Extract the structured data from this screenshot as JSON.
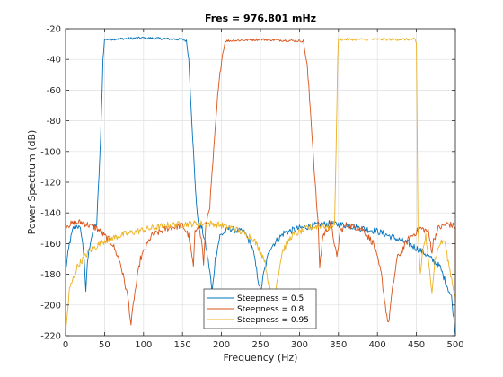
{
  "chart_data": {
    "type": "line",
    "title": "Fres = 976.801 mHz",
    "xlabel": "Frequency (Hz)",
    "ylabel": "Power Spectrum (dB)",
    "xlim": [
      0,
      500
    ],
    "ylim": [
      -220,
      -20
    ],
    "xticks": [
      0,
      50,
      100,
      150,
      200,
      250,
      300,
      350,
      400,
      450,
      500
    ],
    "yticks": [
      -220,
      -200,
      -180,
      -160,
      -140,
      -120,
      -100,
      -80,
      -60,
      -40,
      -20
    ],
    "grid": true,
    "legend_position": "bottom-center",
    "series": [
      {
        "name": "Steepness = 0.5",
        "color": "#0072BD",
        "points": [
          [
            0,
            -178
          ],
          [
            5,
            -160
          ],
          [
            10,
            -150
          ],
          [
            15,
            -148
          ],
          [
            20,
            -152
          ],
          [
            24,
            -170
          ],
          [
            26,
            -193
          ],
          [
            28,
            -172
          ],
          [
            32,
            -158
          ],
          [
            36,
            -150
          ],
          [
            40,
            -147
          ],
          [
            45,
            -92
          ],
          [
            48,
            -40
          ],
          [
            50,
            -27
          ],
          [
            100,
            -26
          ],
          [
            150,
            -27
          ],
          [
            155,
            -28
          ],
          [
            158,
            -40
          ],
          [
            162,
            -80
          ],
          [
            166,
            -120
          ],
          [
            170,
            -147
          ],
          [
            175,
            -150
          ],
          [
            180,
            -162
          ],
          [
            185,
            -178
          ],
          [
            188,
            -192
          ],
          [
            192,
            -170
          ],
          [
            198,
            -155
          ],
          [
            210,
            -150
          ],
          [
            230,
            -153
          ],
          [
            240,
            -163
          ],
          [
            250,
            -192
          ],
          [
            254,
            -180
          ],
          [
            262,
            -163
          ],
          [
            280,
            -153
          ],
          [
            300,
            -150
          ],
          [
            320,
            -148
          ],
          [
            340,
            -147
          ],
          [
            360,
            -148
          ],
          [
            380,
            -150
          ],
          [
            400,
            -152
          ],
          [
            420,
            -156
          ],
          [
            440,
            -160
          ],
          [
            460,
            -166
          ],
          [
            480,
            -175
          ],
          [
            495,
            -195
          ],
          [
            500,
            -219
          ]
        ]
      },
      {
        "name": "Steepness = 0.8",
        "color": "#D95319",
        "points": [
          [
            0,
            -148
          ],
          [
            20,
            -146
          ],
          [
            40,
            -150
          ],
          [
            50,
            -155
          ],
          [
            60,
            -160
          ],
          [
            70,
            -172
          ],
          [
            80,
            -195
          ],
          [
            84,
            -213
          ],
          [
            88,
            -195
          ],
          [
            96,
            -170
          ],
          [
            110,
            -155
          ],
          [
            130,
            -150
          ],
          [
            150,
            -148
          ],
          [
            158,
            -155
          ],
          [
            164,
            -175
          ],
          [
            166,
            -153
          ],
          [
            170,
            -147
          ],
          [
            175,
            -160
          ],
          [
            177,
            -173
          ],
          [
            180,
            -148
          ],
          [
            185,
            -135
          ],
          [
            190,
            -100
          ],
          [
            195,
            -65
          ],
          [
            200,
            -40
          ],
          [
            205,
            -28
          ],
          [
            250,
            -27
          ],
          [
            300,
            -28
          ],
          [
            305,
            -28
          ],
          [
            310,
            -45
          ],
          [
            315,
            -80
          ],
          [
            320,
            -120
          ],
          [
            324,
            -148
          ],
          [
            326,
            -175
          ],
          [
            330,
            -155
          ],
          [
            340,
            -147
          ],
          [
            345,
            -160
          ],
          [
            348,
            -170
          ],
          [
            352,
            -152
          ],
          [
            360,
            -148
          ],
          [
            380,
            -150
          ],
          [
            395,
            -160
          ],
          [
            405,
            -180
          ],
          [
            410,
            -200
          ],
          [
            414,
            -213
          ],
          [
            418,
            -195
          ],
          [
            425,
            -170
          ],
          [
            440,
            -157
          ],
          [
            455,
            -150
          ],
          [
            465,
            -152
          ],
          [
            470,
            -165
          ],
          [
            472,
            -158
          ],
          [
            478,
            -150
          ],
          [
            490,
            -147
          ],
          [
            500,
            -149
          ],
          [
            500,
            -198
          ]
        ]
      },
      {
        "name": "Steepness = 0.95",
        "color": "#EDB120",
        "points": [
          [
            0,
            -219
          ],
          [
            5,
            -190
          ],
          [
            15,
            -175
          ],
          [
            30,
            -165
          ],
          [
            50,
            -158
          ],
          [
            75,
            -154
          ],
          [
            100,
            -151
          ],
          [
            130,
            -148
          ],
          [
            160,
            -147
          ],
          [
            190,
            -147
          ],
          [
            215,
            -150
          ],
          [
            240,
            -156
          ],
          [
            255,
            -170
          ],
          [
            262,
            -190
          ],
          [
            266,
            -198
          ],
          [
            270,
            -188
          ],
          [
            278,
            -165
          ],
          [
            290,
            -155
          ],
          [
            310,
            -150
          ],
          [
            330,
            -148
          ],
          [
            340,
            -150
          ],
          [
            345,
            -146
          ],
          [
            347,
            -100
          ],
          [
            349,
            -40
          ],
          [
            350,
            -27
          ],
          [
            400,
            -27
          ],
          [
            448,
            -27
          ],
          [
            450,
            -30
          ],
          [
            452,
            -150
          ],
          [
            455,
            -180
          ],
          [
            458,
            -165
          ],
          [
            462,
            -155
          ],
          [
            466,
            -175
          ],
          [
            470,
            -190
          ],
          [
            474,
            -170
          ],
          [
            480,
            -160
          ],
          [
            486,
            -158
          ],
          [
            492,
            -175
          ],
          [
            500,
            -195
          ]
        ]
      }
    ]
  }
}
